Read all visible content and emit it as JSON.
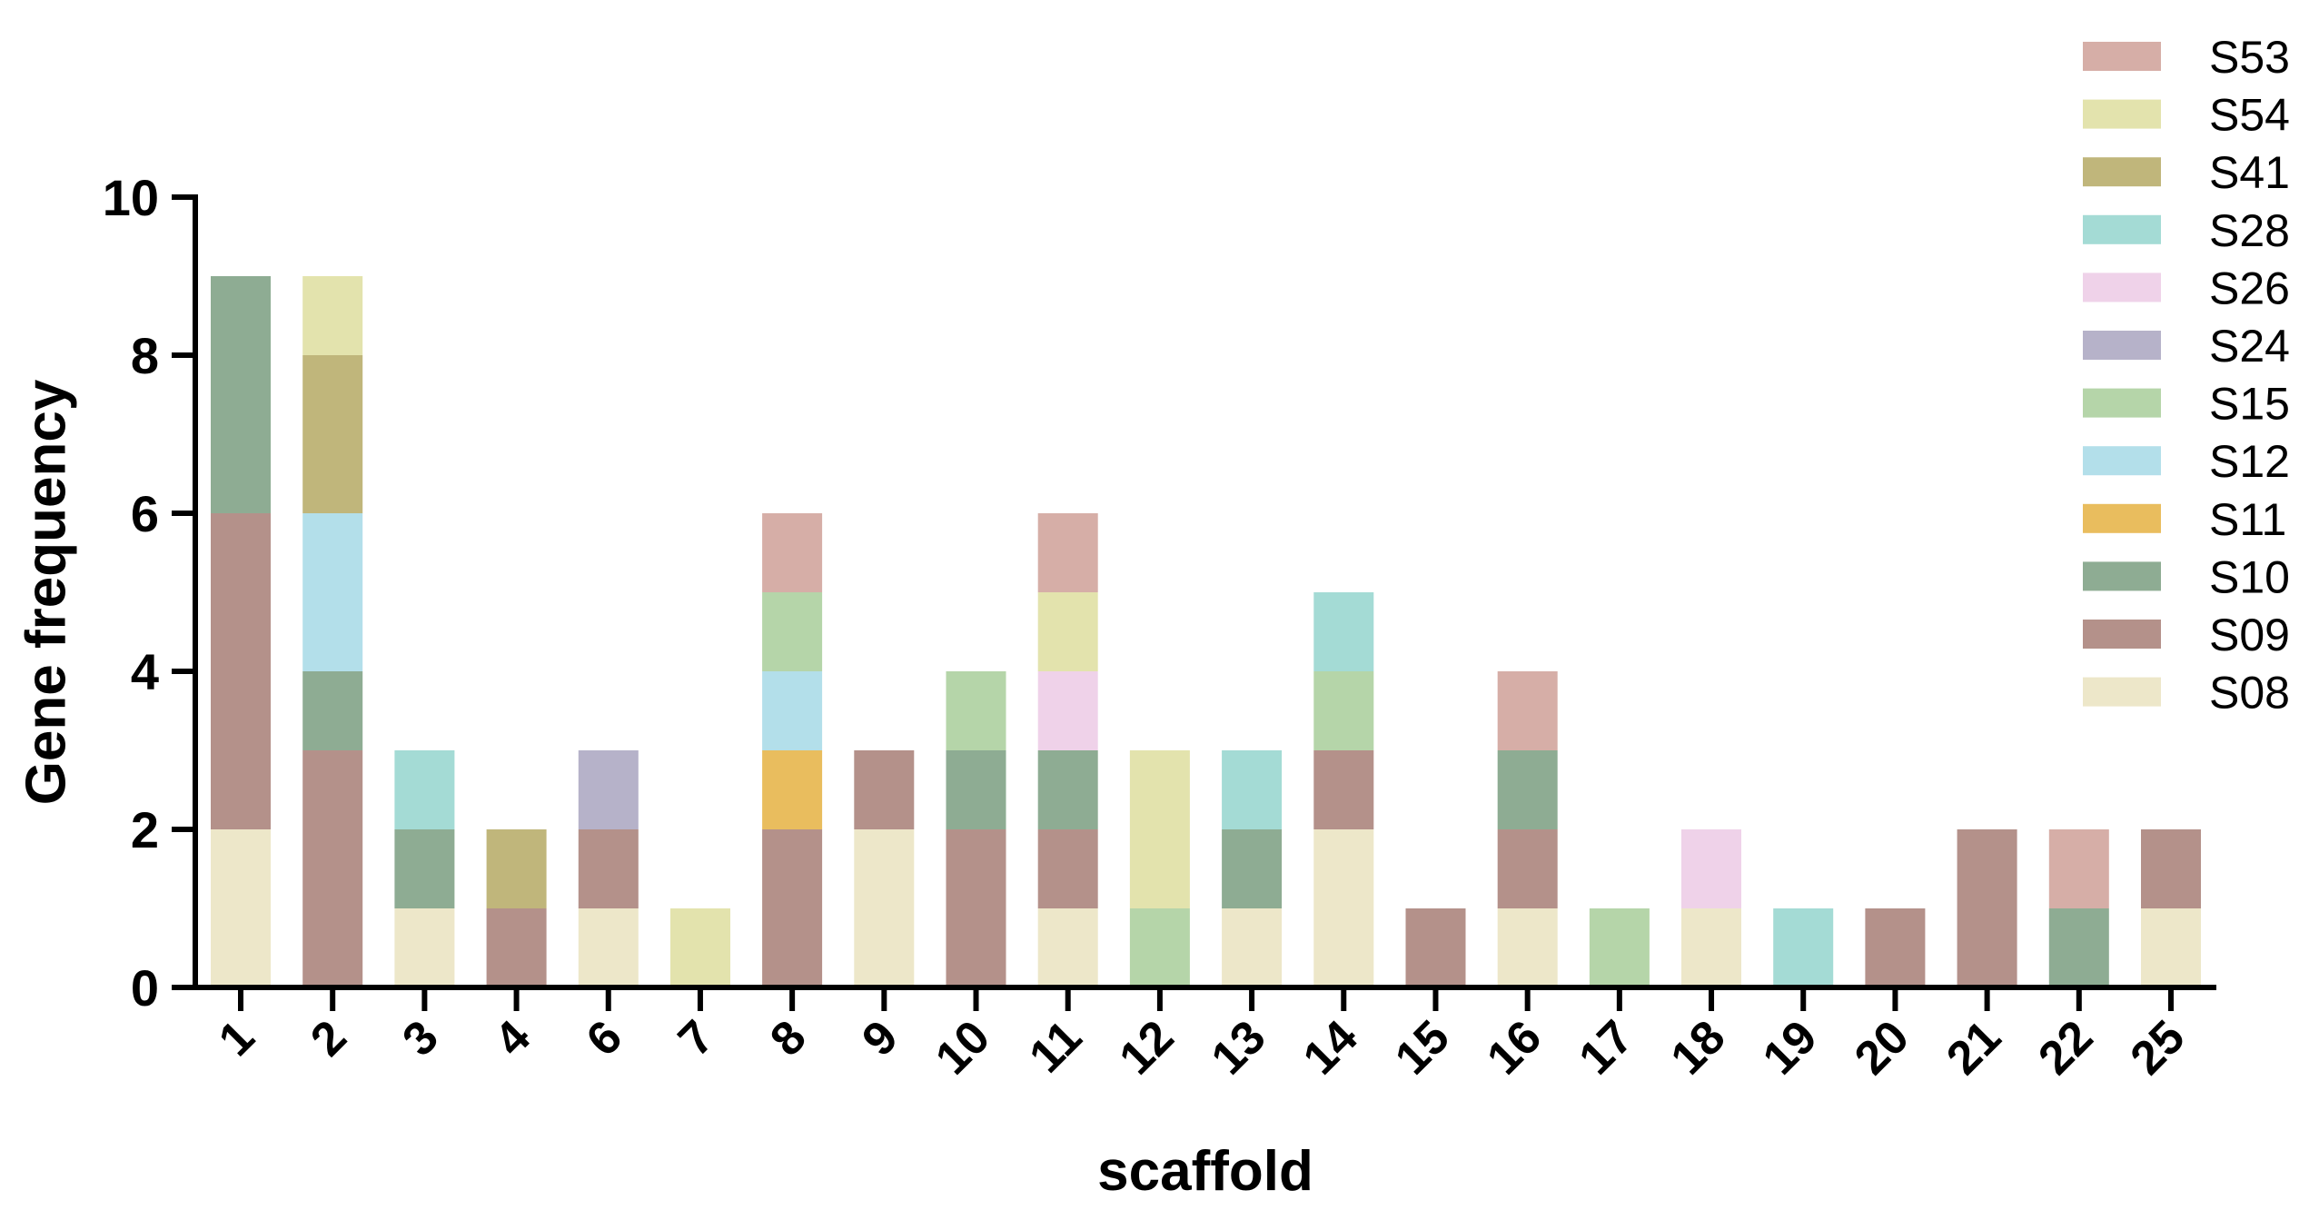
{
  "chart_data": {
    "type": "bar",
    "stacked": true,
    "title": "",
    "xlabel": "scaffold",
    "ylabel": "Gene frequency",
    "ylim": [
      0,
      10
    ],
    "yticks": [
      0,
      2,
      4,
      6,
      8,
      10
    ],
    "grid": false,
    "legend_position": "top-right",
    "categories": [
      "1",
      "2",
      "3",
      "4",
      "6",
      "7",
      "8",
      "9",
      "10",
      "11",
      "12",
      "13",
      "14",
      "15",
      "16",
      "17",
      "18",
      "19",
      "20",
      "21",
      "22",
      "25"
    ],
    "series": [
      {
        "name": "S08",
        "color": "#ede7c9",
        "values": [
          2,
          0,
          1,
          0,
          1,
          0,
          0,
          2,
          0,
          1,
          0,
          1,
          2,
          0,
          1,
          0,
          1,
          0,
          0,
          0,
          0,
          1
        ]
      },
      {
        "name": "S09",
        "color": "#b4918a",
        "values": [
          4,
          3,
          0,
          1,
          1,
          0,
          2,
          1,
          2,
          1,
          0,
          0,
          1,
          1,
          1,
          0,
          0,
          0,
          1,
          2,
          0,
          1
        ]
      },
      {
        "name": "S10",
        "color": "#8eac93",
        "values": [
          3,
          1,
          1,
          0,
          0,
          0,
          0,
          0,
          1,
          1,
          0,
          1,
          0,
          0,
          1,
          0,
          0,
          0,
          0,
          0,
          1,
          0
        ]
      },
      {
        "name": "S11",
        "color": "#e9bd5e",
        "values": [
          0,
          0,
          0,
          0,
          0,
          0,
          1,
          0,
          0,
          0,
          0,
          0,
          0,
          0,
          0,
          0,
          0,
          0,
          0,
          0,
          0,
          0
        ]
      },
      {
        "name": "S12",
        "color": "#b3dfea",
        "values": [
          0,
          2,
          0,
          0,
          0,
          0,
          1,
          0,
          0,
          0,
          0,
          0,
          0,
          0,
          0,
          0,
          0,
          0,
          0,
          0,
          0,
          0
        ]
      },
      {
        "name": "S15",
        "color": "#b5d5a9",
        "values": [
          0,
          0,
          0,
          0,
          0,
          0,
          1,
          0,
          1,
          0,
          1,
          0,
          1,
          0,
          0,
          1,
          0,
          0,
          0,
          0,
          0,
          0
        ]
      },
      {
        "name": "S24",
        "color": "#b6b2c9",
        "values": [
          0,
          0,
          0,
          0,
          1,
          0,
          0,
          0,
          0,
          0,
          0,
          0,
          0,
          0,
          0,
          0,
          0,
          0,
          0,
          0,
          0,
          0
        ]
      },
      {
        "name": "S26",
        "color": "#efd2e9",
        "values": [
          0,
          0,
          0,
          0,
          0,
          0,
          0,
          0,
          0,
          1,
          0,
          0,
          0,
          0,
          0,
          0,
          1,
          0,
          0,
          0,
          0,
          0
        ]
      },
      {
        "name": "S28",
        "color": "#a4dbd5",
        "values": [
          0,
          0,
          1,
          0,
          0,
          0,
          0,
          0,
          0,
          0,
          0,
          1,
          1,
          0,
          0,
          0,
          0,
          1,
          0,
          0,
          0,
          0
        ]
      },
      {
        "name": "S41",
        "color": "#c0b67b",
        "values": [
          0,
          2,
          0,
          1,
          0,
          0,
          0,
          0,
          0,
          0,
          0,
          0,
          0,
          0,
          0,
          0,
          0,
          0,
          0,
          0,
          0,
          0
        ]
      },
      {
        "name": "S54",
        "color": "#e3e3ad",
        "values": [
          0,
          1,
          0,
          0,
          0,
          1,
          0,
          0,
          0,
          1,
          2,
          0,
          0,
          0,
          0,
          0,
          0,
          0,
          0,
          0,
          0,
          0
        ]
      },
      {
        "name": "S53",
        "color": "#d6aea7",
        "values": [
          0,
          0,
          0,
          0,
          0,
          0,
          1,
          0,
          0,
          1,
          0,
          0,
          0,
          0,
          1,
          0,
          0,
          0,
          0,
          0,
          1,
          0
        ]
      }
    ]
  }
}
